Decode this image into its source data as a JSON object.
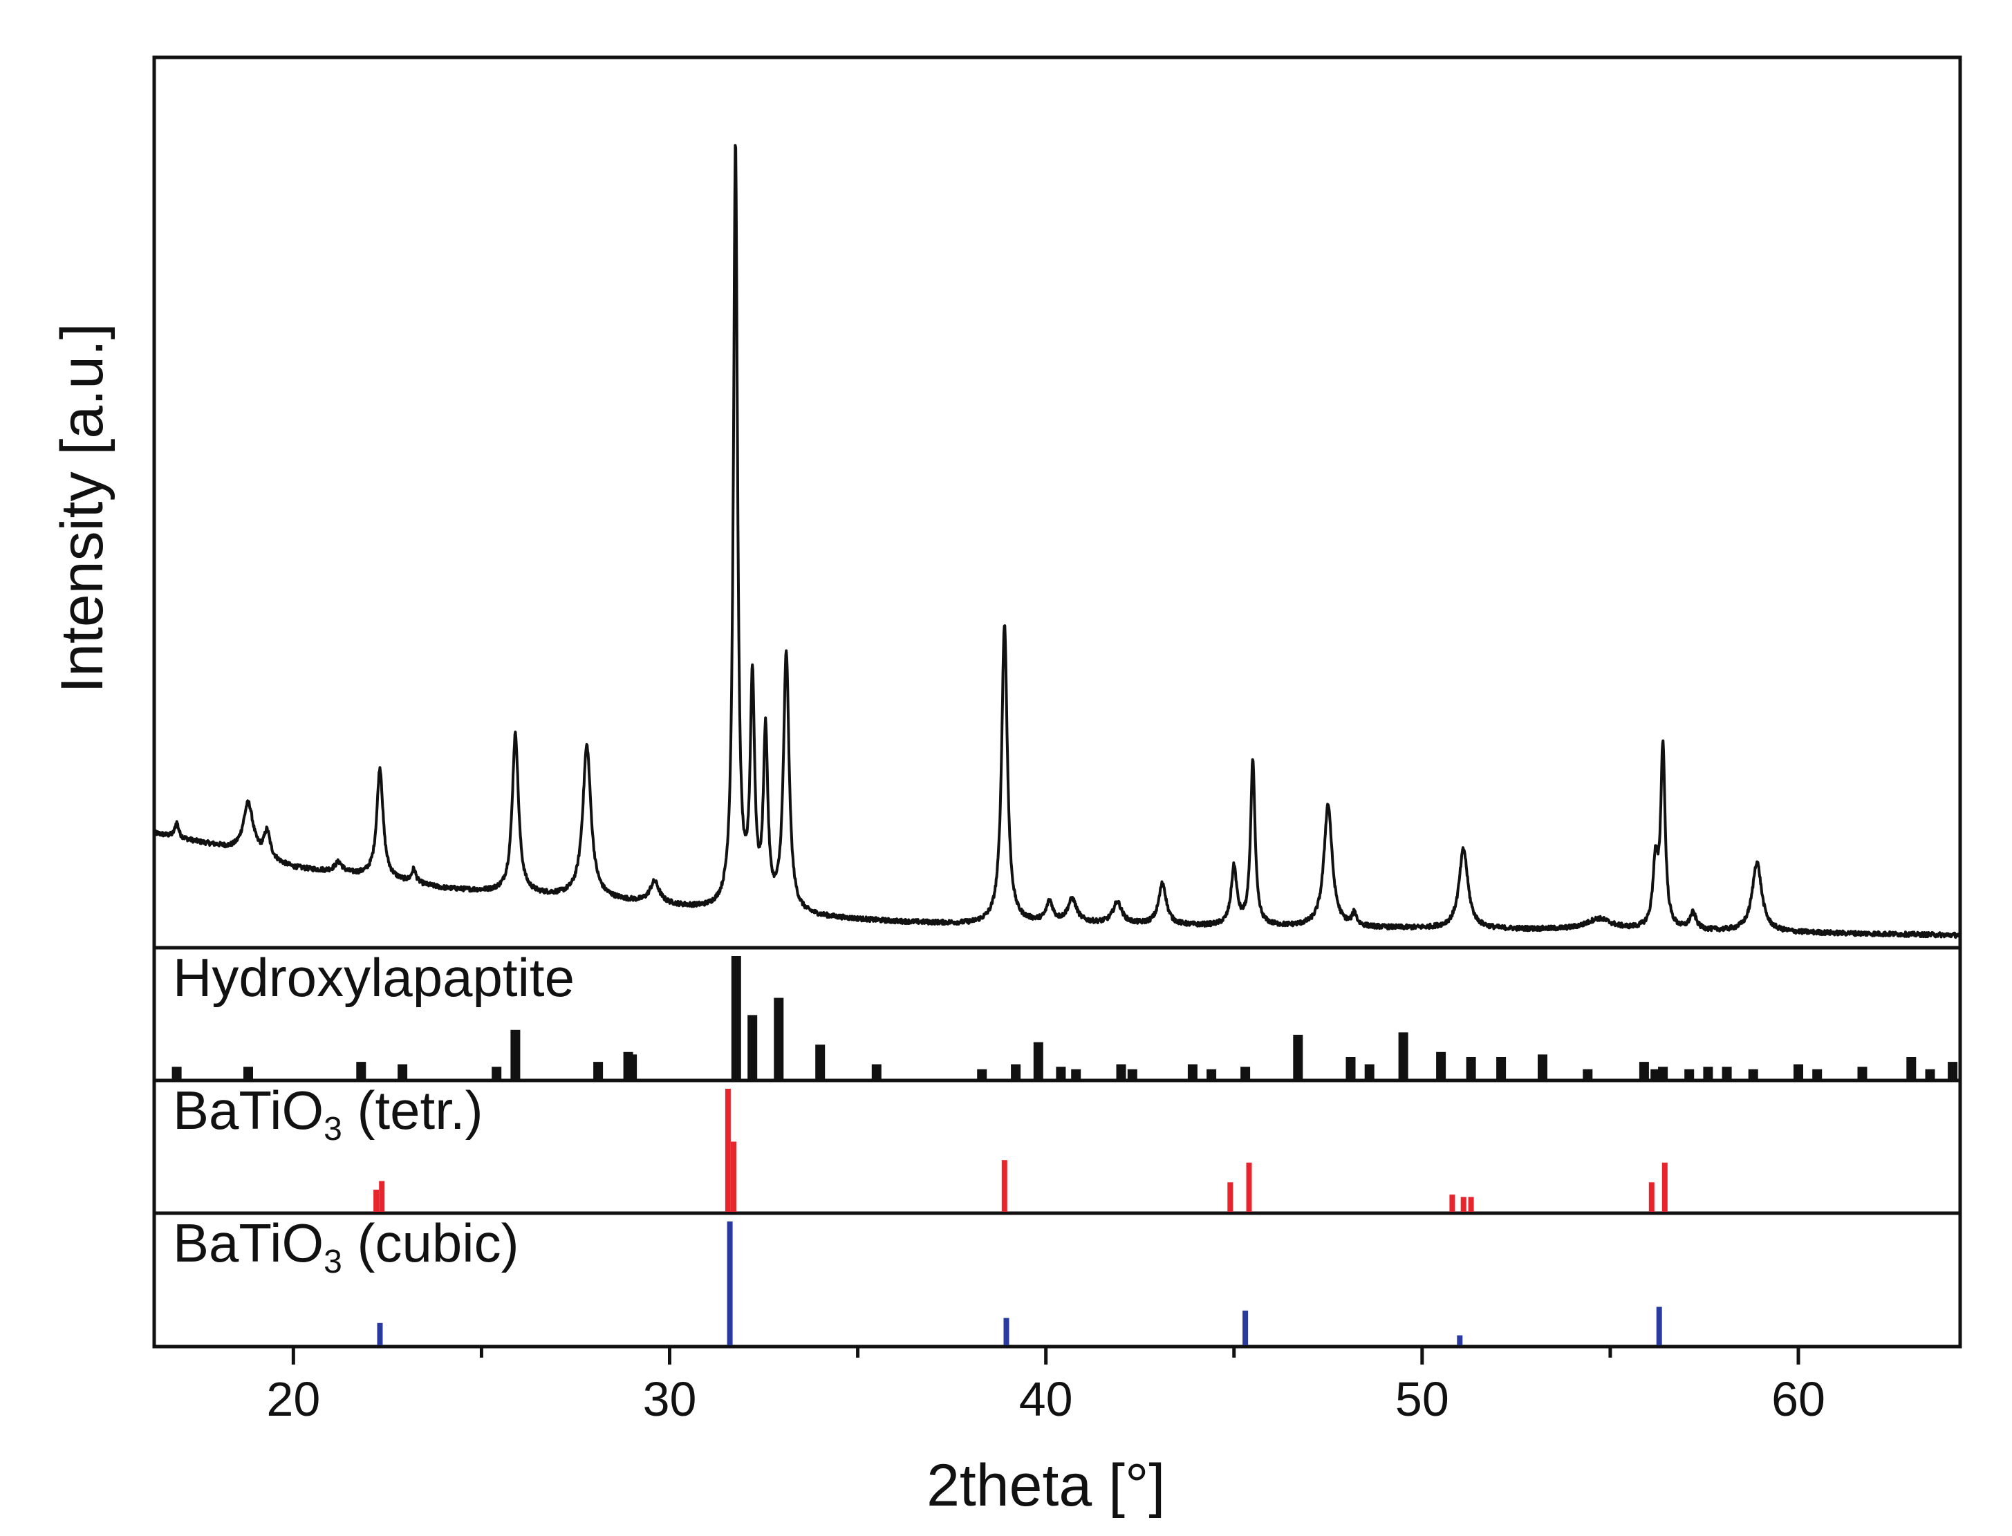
{
  "chart_data": {
    "type": "line",
    "xlabel": "2theta [°]",
    "ylabel": "Intensity [a.u.]",
    "xlim": [
      16.3,
      64.3
    ],
    "xticks": [
      20,
      30,
      40,
      50,
      60
    ],
    "xtick_labels": [
      "20",
      "30",
      "40",
      "50",
      "60"
    ],
    "minor_xticks": [
      25,
      35,
      45,
      55
    ],
    "main_series": {
      "name": "",
      "ylim": [
        0,
        100
      ],
      "baseline": [
        [
          16.3,
          12.8
        ],
        [
          18.0,
          11.2
        ],
        [
          20.0,
          8.6
        ],
        [
          22.0,
          7.6
        ],
        [
          24.0,
          6.1
        ],
        [
          26.0,
          5.4
        ],
        [
          28.0,
          4.9
        ],
        [
          30.0,
          4.0
        ],
        [
          31.0,
          3.5
        ],
        [
          34.0,
          2.6
        ],
        [
          36.0,
          2.1
        ],
        [
          38.0,
          1.8
        ],
        [
          40.0,
          2.0
        ],
        [
          44.0,
          1.6
        ],
        [
          48.0,
          1.4
        ],
        [
          52.0,
          1.2
        ],
        [
          56.0,
          1.1
        ],
        [
          60.0,
          0.8
        ],
        [
          64.3,
          0.5
        ]
      ],
      "peaks": [
        {
          "x": 16.9,
          "h": 1.8,
          "w": 0.06
        },
        {
          "x": 18.8,
          "h": 6.2,
          "w": 0.16
        },
        {
          "x": 19.3,
          "h": 3.2,
          "w": 0.1
        },
        {
          "x": 21.2,
          "h": 1.2,
          "w": 0.12
        },
        {
          "x": 22.3,
          "h": 13.2,
          "w": 0.1
        },
        {
          "x": 23.2,
          "h": 1.6,
          "w": 0.07
        },
        {
          "x": 25.9,
          "h": 19.2,
          "w": 0.1
        },
        {
          "x": 27.8,
          "h": 18.3,
          "w": 0.13
        },
        {
          "x": 29.6,
          "h": 2.6,
          "w": 0.15
        },
        {
          "x": 31.75,
          "h": 92.0,
          "w": 0.065
        },
        {
          "x": 32.2,
          "h": 27.0,
          "w": 0.07
        },
        {
          "x": 32.55,
          "h": 21.0,
          "w": 0.07
        },
        {
          "x": 33.1,
          "h": 31.0,
          "w": 0.09
        },
        {
          "x": 38.9,
          "h": 36.0,
          "w": 0.09
        },
        {
          "x": 40.1,
          "h": 2.4,
          "w": 0.1
        },
        {
          "x": 40.7,
          "h": 2.8,
          "w": 0.14
        },
        {
          "x": 41.9,
          "h": 2.6,
          "w": 0.14
        },
        {
          "x": 43.1,
          "h": 5.0,
          "w": 0.12
        },
        {
          "x": 45.0,
          "h": 7.0,
          "w": 0.09
        },
        {
          "x": 45.5,
          "h": 20.0,
          "w": 0.07
        },
        {
          "x": 47.5,
          "h": 14.8,
          "w": 0.13
        },
        {
          "x": 48.2,
          "h": 1.5,
          "w": 0.07
        },
        {
          "x": 51.1,
          "h": 9.6,
          "w": 0.14
        },
        {
          "x": 54.7,
          "h": 1.3,
          "w": 0.4
        },
        {
          "x": 56.2,
          "h": 7.5,
          "w": 0.08
        },
        {
          "x": 56.4,
          "h": 21.8,
          "w": 0.07
        },
        {
          "x": 57.2,
          "h": 2.0,
          "w": 0.1
        },
        {
          "x": 58.9,
          "h": 8.4,
          "w": 0.15
        }
      ]
    },
    "reference_panels": [
      {
        "label": "Hydroxylapaptite",
        "label_sub": "",
        "label_tail": "",
        "color": "#111111",
        "ylim": [
          0,
          100
        ],
        "sticks": [
          [
            16.9,
            10
          ],
          [
            18.8,
            10
          ],
          [
            21.8,
            14
          ],
          [
            22.9,
            12
          ],
          [
            25.4,
            10
          ],
          [
            25.9,
            40
          ],
          [
            28.1,
            14
          ],
          [
            28.9,
            22
          ],
          [
            29.0,
            20
          ],
          [
            31.77,
            100
          ],
          [
            32.2,
            52
          ],
          [
            32.9,
            66
          ],
          [
            34.0,
            28
          ],
          [
            35.5,
            12
          ],
          [
            38.3,
            8
          ],
          [
            39.2,
            12
          ],
          [
            39.8,
            30
          ],
          [
            40.4,
            10
          ],
          [
            40.8,
            8
          ],
          [
            42.0,
            12
          ],
          [
            42.3,
            8
          ],
          [
            43.9,
            12
          ],
          [
            44.4,
            8
          ],
          [
            45.3,
            10
          ],
          [
            46.7,
            36
          ],
          [
            48.1,
            18
          ],
          [
            48.6,
            12
          ],
          [
            49.5,
            38
          ],
          [
            50.5,
            22
          ],
          [
            51.3,
            18
          ],
          [
            52.1,
            18
          ],
          [
            53.2,
            20
          ],
          [
            54.4,
            8
          ],
          [
            55.9,
            14
          ],
          [
            56.2,
            8
          ],
          [
            56.4,
            10
          ],
          [
            57.1,
            8
          ],
          [
            57.6,
            10
          ],
          [
            58.1,
            10
          ],
          [
            58.8,
            8
          ],
          [
            60.0,
            12
          ],
          [
            60.5,
            8
          ],
          [
            61.7,
            10
          ],
          [
            63.0,
            18
          ],
          [
            63.5,
            8
          ],
          [
            64.1,
            14
          ]
        ]
      },
      {
        "label": "BaTiO",
        "label_sub": "3",
        "label_tail": " (tetr.)",
        "color": "#e8242c",
        "ylim": [
          0,
          100
        ],
        "sticks": [
          [
            22.2,
            18
          ],
          [
            22.35,
            25
          ],
          [
            31.55,
            100
          ],
          [
            31.7,
            57
          ],
          [
            38.9,
            42
          ],
          [
            44.9,
            24
          ],
          [
            45.4,
            40
          ],
          [
            50.8,
            14
          ],
          [
            51.1,
            12
          ],
          [
            51.3,
            12
          ],
          [
            56.1,
            24
          ],
          [
            56.45,
            40
          ]
        ]
      },
      {
        "label": "BaTiO",
        "label_sub": "3",
        "label_tail": " (cubic)",
        "color": "#2b3a9e",
        "ylim": [
          0,
          100
        ],
        "sticks": [
          [
            22.3,
            18
          ],
          [
            31.6,
            100
          ],
          [
            38.95,
            22
          ],
          [
            45.3,
            28
          ],
          [
            51.0,
            8
          ],
          [
            56.3,
            31
          ]
        ]
      }
    ],
    "grid": false,
    "legend": "none"
  }
}
